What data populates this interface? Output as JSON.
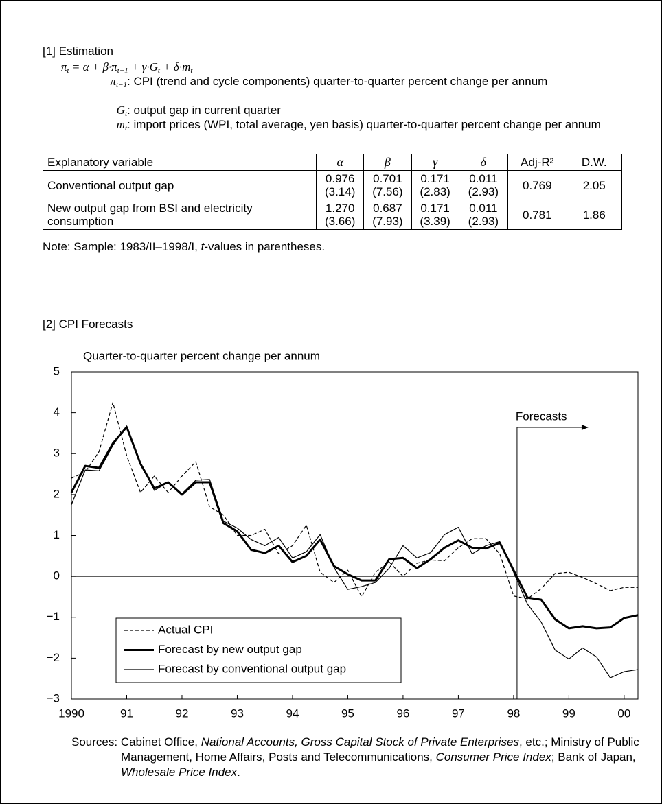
{
  "section1": {
    "heading": "[1] Estimation",
    "formula": [
      "π",
      "t",
      " = α + β·π",
      "t−1",
      " + γ·G",
      "t",
      " + δ·m",
      "t"
    ],
    "definitions": [
      {
        "symbol": "π",
        "sub": "t−1",
        "text": ": CPI (trend and cycle components) quarter-to-quarter percent change per annum"
      },
      {
        "symbol": "G",
        "sub": "t",
        "text": ": output gap in current quarter"
      },
      {
        "symbol": "m",
        "sub": "t",
        "text": ": import prices (WPI, total average, yen basis) quarter-to-quarter percent change per annum"
      }
    ]
  },
  "table": {
    "header": [
      "Explanatory variable",
      "α",
      "β",
      "γ",
      "δ",
      "Adj-R²",
      "D.W."
    ],
    "rows": [
      [
        "Conventional output gap",
        [
          "0.976",
          "(3.14)"
        ],
        [
          "0.701",
          "(7.56)"
        ],
        [
          "0.171",
          "(2.83)"
        ],
        [
          "0.011",
          "(2.93)"
        ],
        "0.769",
        "2.05"
      ],
      [
        "New output gap from BSI and electricity consumption",
        [
          "1.270",
          "(3.66)"
        ],
        [
          "0.687",
          "(7.93)"
        ],
        [
          "0.171",
          "(3.39)"
        ],
        [
          "0.011",
          "(2.93)"
        ],
        "0.781",
        "1.86"
      ]
    ]
  },
  "note": [
    "Note: Sample: 1983/II–1998/I, ",
    "t",
    "-values in parentheses."
  ],
  "section2": {
    "heading": "[2] CPI Forecasts"
  },
  "chart_data": {
    "type": "line",
    "y_label": "Quarter-to-quarter percent change per annum",
    "x": [
      1990,
      1990.25,
      1990.5,
      1990.75,
      1991,
      1991.25,
      1991.5,
      1991.75,
      1992,
      1992.25,
      1992.5,
      1992.75,
      1993,
      1993.25,
      1993.5,
      1993.75,
      1994,
      1994.25,
      1994.5,
      1994.75,
      1995,
      1995.25,
      1995.5,
      1995.75,
      1996,
      1996.25,
      1996.5,
      1996.75,
      1997,
      1997.25,
      1997.5,
      1997.75,
      1998,
      1998.25,
      1998.5,
      1998.75,
      1999,
      1999.25,
      1999.5,
      1999.75,
      2000,
      2000.25
    ],
    "series": [
      {
        "name": "Actual CPI",
        "color": "#000000",
        "linestyle": "dashed",
        "linewidth": 1.2,
        "values": [
          2.4,
          2.55,
          3.05,
          4.25,
          2.95,
          2.05,
          2.45,
          2.05,
          2.45,
          2.8,
          1.7,
          1.5,
          1.0,
          1.0,
          1.15,
          0.55,
          0.75,
          1.25,
          0.1,
          -0.15,
          0.15,
          -0.5,
          0.1,
          0.35,
          0.0,
          0.32,
          0.4,
          0.38,
          0.7,
          0.92,
          0.92,
          0.55,
          -0.48,
          -0.55,
          -0.3,
          0.07,
          0.1,
          -0.03,
          -0.18,
          -0.35,
          -0.27,
          -0.27
        ]
      },
      {
        "name": "Forecast by new output gap",
        "color": "#000000",
        "linestyle": "solid",
        "linewidth": 3,
        "values": [
          2.05,
          2.7,
          2.65,
          3.25,
          3.65,
          2.75,
          2.15,
          2.3,
          2.0,
          2.3,
          2.3,
          1.3,
          1.1,
          0.65,
          0.57,
          0.75,
          0.35,
          0.5,
          0.9,
          0.25,
          0.05,
          -0.1,
          -0.1,
          0.42,
          0.45,
          0.2,
          0.42,
          0.7,
          0.88,
          0.7,
          0.68,
          0.82,
          0.15,
          -0.52,
          -0.57,
          -1.05,
          -1.27,
          -1.22,
          -1.27,
          -1.25,
          -1.02,
          -0.95
        ]
      },
      {
        "name": "Forecast by conventional output gap",
        "color": "#000000",
        "linestyle": "solid",
        "linewidth": 1.2,
        "values": [
          1.75,
          2.6,
          2.58,
          3.2,
          3.68,
          2.78,
          2.1,
          2.3,
          2.02,
          2.35,
          2.37,
          1.35,
          1.18,
          0.9,
          0.75,
          0.95,
          0.45,
          0.6,
          1.02,
          0.22,
          -0.32,
          -0.25,
          -0.15,
          0.2,
          0.75,
          0.45,
          0.58,
          1.02,
          1.2,
          0.55,
          0.75,
          0.85,
          0.1,
          -0.68,
          -1.12,
          -1.8,
          -2.02,
          -1.75,
          -1.97,
          -2.48,
          -2.33,
          -2.28
        ]
      }
    ],
    "xlim": [
      1990,
      2000.25
    ],
    "xticks": [
      {
        "value": 1990,
        "label": "1990"
      },
      {
        "value": 1991,
        "label": "91"
      },
      {
        "value": 1992,
        "label": "92"
      },
      {
        "value": 1993,
        "label": "93"
      },
      {
        "value": 1994,
        "label": "94"
      },
      {
        "value": 1995,
        "label": "95"
      },
      {
        "value": 1996,
        "label": "96"
      },
      {
        "value": 1997,
        "label": "97"
      },
      {
        "value": 1998,
        "label": "98"
      },
      {
        "value": 1999,
        "label": "99"
      },
      {
        "value": 2000,
        "label": "00"
      }
    ],
    "ylim": [
      -3,
      5
    ],
    "yticks": [
      {
        "value": -3,
        "label": "−3"
      },
      {
        "value": -2,
        "label": "−2"
      },
      {
        "value": -1,
        "label": "−1"
      },
      0,
      1,
      2,
      3,
      4,
      5
    ],
    "legend": "lower left",
    "annotations": [
      {
        "text": "Forecasts",
        "x": 1998.0625
      }
    ]
  },
  "sources": [
    "Sources:",
    " Cabinet Office, ",
    "National Accounts, Gross Capital Stock of Private Enterprises",
    ", etc.; Ministry of Public Management, Home Affairs, Posts and Telecommunications, ",
    "Consumer Price Index",
    "; Bank of Japan, ",
    "Wholesale Price Index",
    "."
  ]
}
